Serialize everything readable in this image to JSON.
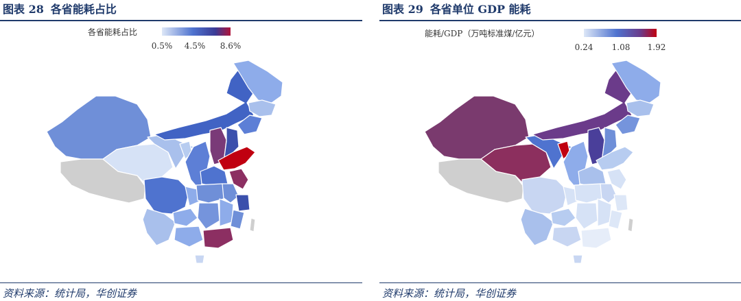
{
  "left": {
    "fig_label": "图表 28",
    "fig_title": "各省能耗占比",
    "legend": {
      "title": "各省能耗占比",
      "min": "0.5%",
      "mid": "4.5%",
      "max": "8.6%",
      "colors": [
        "#dde7f7",
        "#4f73cf",
        "#3b3b95",
        "#b0143a"
      ]
    },
    "source": "资料来源：统计局，华创证券"
  },
  "right": {
    "fig_label": "图表 29",
    "fig_title": "各省单位 GDP 能耗",
    "legend": {
      "title": "能耗/GDP（万吨标准煤/亿元）",
      "min": "0.24",
      "mid": "1.08",
      "max": "1.92",
      "colors": [
        "#dde7f7",
        "#4f73cf",
        "#6b3b8a",
        "#c00010"
      ]
    },
    "source": "资料来源：统计局，华创证券"
  },
  "colors": {
    "title": "#1f3a6b",
    "no_data": "#cfcfcf"
  }
}
